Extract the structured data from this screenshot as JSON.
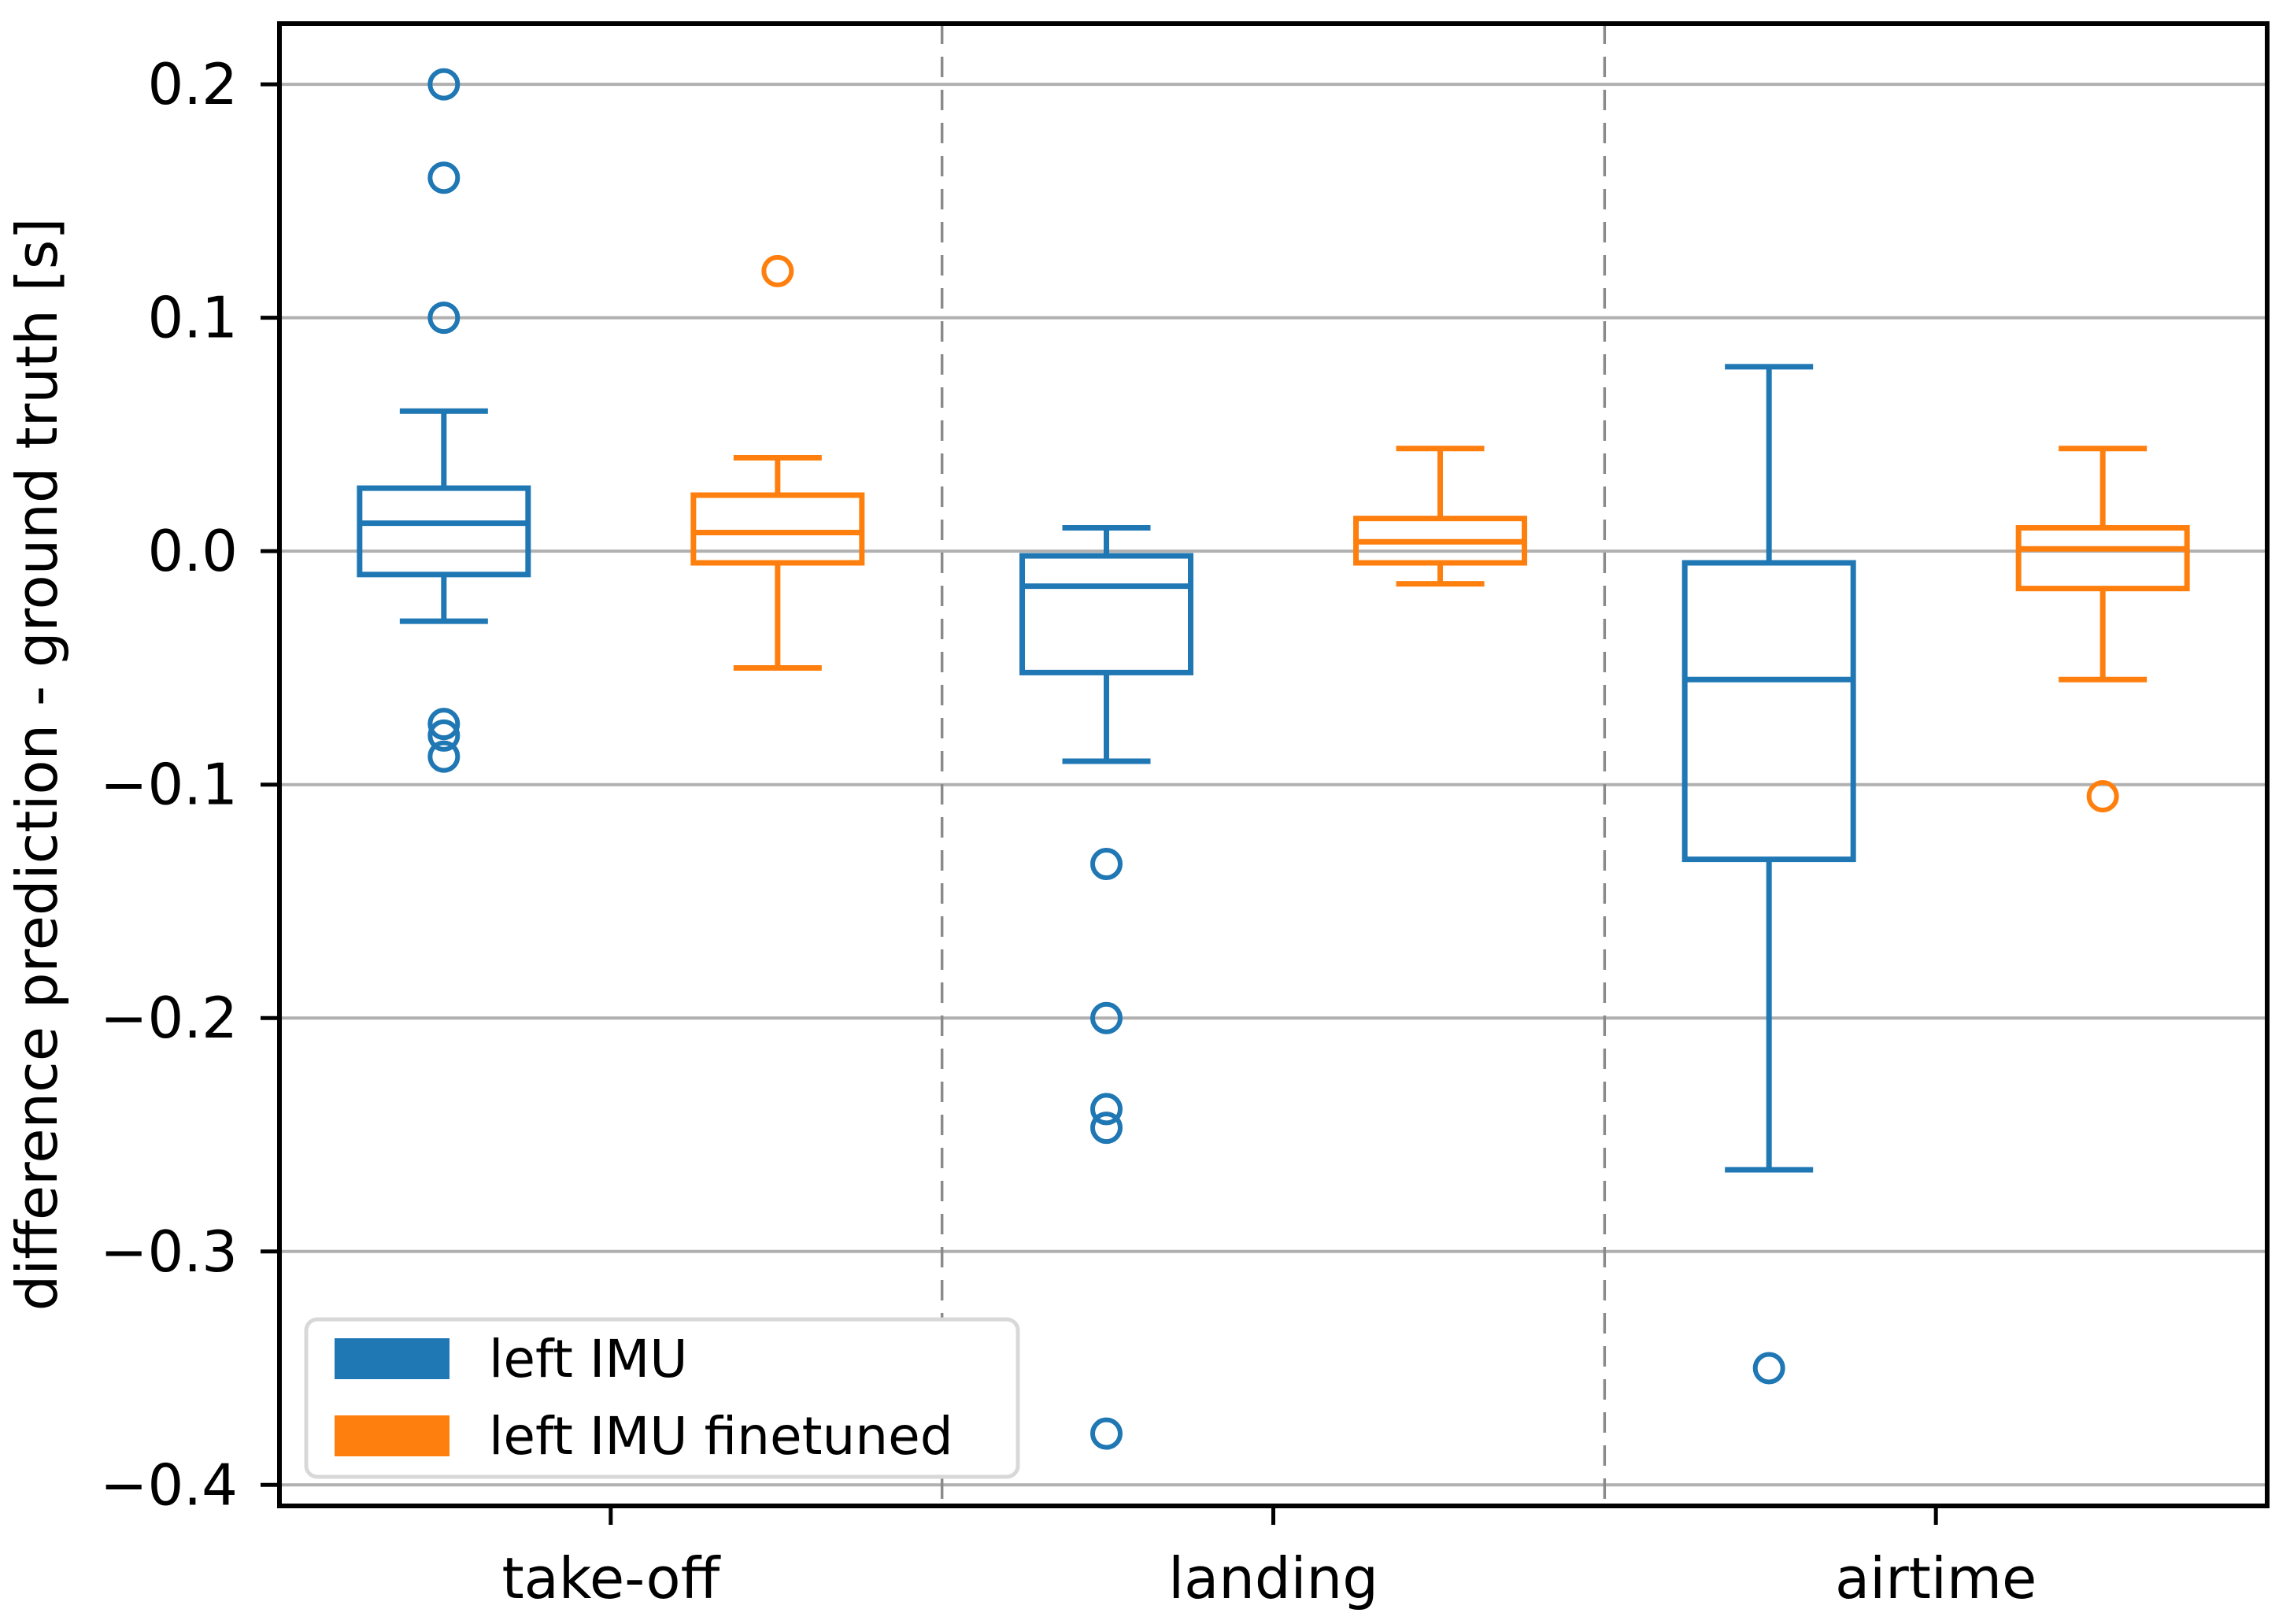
{
  "chart_data": {
    "type": "boxplot",
    "title": "",
    "xlabel": "",
    "ylabel": "difference prediction - ground truth [s]",
    "categories": [
      "take-off",
      "landing",
      "airtime"
    ],
    "ylim": [
      -0.409,
      0.226
    ],
    "ytick_values": [
      0.2,
      0.1,
      0.0,
      -0.1,
      -0.2,
      -0.3,
      -0.4
    ],
    "ytick_labels": [
      "0.2",
      "0.1",
      "0.0",
      "−0.1",
      "−0.2",
      "−0.3",
      "−0.4"
    ],
    "grid": "horizontal",
    "category_separators": "dashed-vertical",
    "legend": {
      "position": "lower-left",
      "entries": [
        {
          "label": "left IMU",
          "color": "#1f77b4"
        },
        {
          "label": "left IMU finetuned",
          "color": "#ff7f0e"
        }
      ]
    },
    "series": [
      {
        "name": "left IMU",
        "color": "#1f77b4",
        "boxes": [
          {
            "category": "take-off",
            "whisker_low": -0.03,
            "q1": -0.01,
            "median": 0.012,
            "q3": 0.027,
            "whisker_high": 0.06,
            "outliers": [
              0.2,
              0.16,
              0.1,
              -0.074,
              -0.079,
              -0.088
            ]
          },
          {
            "category": "landing",
            "whisker_low": -0.09,
            "q1": -0.052,
            "median": -0.015,
            "q3": -0.002,
            "whisker_high": 0.01,
            "outliers": [
              -0.134,
              -0.2,
              -0.239,
              -0.247,
              -0.378
            ]
          },
          {
            "category": "airtime",
            "whisker_low": -0.265,
            "q1": -0.132,
            "median": -0.055,
            "q3": -0.005,
            "whisker_high": 0.079,
            "outliers": [
              -0.35
            ]
          }
        ]
      },
      {
        "name": "left IMU finetuned",
        "color": "#ff7f0e",
        "boxes": [
          {
            "category": "take-off",
            "whisker_low": -0.05,
            "q1": -0.005,
            "median": 0.008,
            "q3": 0.024,
            "whisker_high": 0.04,
            "outliers": [
              0.12
            ]
          },
          {
            "category": "landing",
            "whisker_low": -0.014,
            "q1": -0.005,
            "median": 0.004,
            "q3": 0.014,
            "whisker_high": 0.044,
            "outliers": []
          },
          {
            "category": "airtime",
            "whisker_low": -0.055,
            "q1": -0.016,
            "median": 0.001,
            "q3": 0.01,
            "whisker_high": 0.044,
            "outliers": [
              -0.105
            ]
          }
        ]
      }
    ],
    "colors": {
      "gridline": "#b0b0b0",
      "separator": "#8a8a8a",
      "spine": "#000000",
      "background": "#ffffff",
      "legend_border": "#d8d8d8"
    }
  }
}
